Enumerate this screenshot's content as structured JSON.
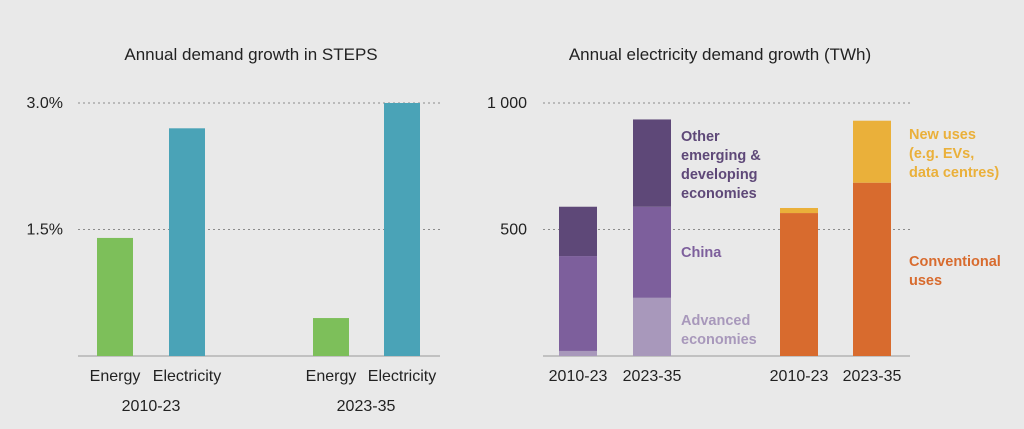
{
  "colors": {
    "background": "#e9e9e9",
    "energy": "#7dbf5a",
    "electricity": "#4aa3b7",
    "advanced_economies": "#a898bb",
    "china": "#7d5f9c",
    "other_emerging": "#5e4878",
    "conventional_uses": "#d86b2e",
    "new_uses": "#eab03a"
  },
  "chart_data": [
    {
      "type": "bar",
      "title": "Annual demand growth in STEPS",
      "ylim": [
        0,
        3.0
      ],
      "yticks": [
        {
          "value": 1.5,
          "label": "1.5%"
        },
        {
          "value": 3.0,
          "label": "3.0%"
        }
      ],
      "groups": [
        {
          "label": "2010-23",
          "bars": [
            {
              "label": "Energy",
              "value": 1.4,
              "color_key": "energy"
            },
            {
              "label": "Electricity",
              "value": 2.7,
              "color_key": "electricity"
            }
          ]
        },
        {
          "label": "2023-35",
          "bars": [
            {
              "label": "Energy",
              "value": 0.45,
              "color_key": "energy"
            },
            {
              "label": "Electricity",
              "value": 3.0,
              "color_key": "electricity"
            }
          ]
        }
      ]
    },
    {
      "type": "bar",
      "stacked": true,
      "title": "Annual electricity demand growth (TWh)",
      "ylim": [
        0,
        1000
      ],
      "yticks": [
        {
          "value": 500,
          "label": "500"
        },
        {
          "value": 1000,
          "label": "1 000"
        }
      ],
      "bars": [
        {
          "label": "2010-23",
          "segments": [
            {
              "name": "Advanced economies",
              "value": 20,
              "color_key": "advanced_economies"
            },
            {
              "name": "China",
              "value": 375,
              "color_key": "china"
            },
            {
              "name": "Other emerging & developing economies",
              "value": 195,
              "color_key": "other_emerging"
            }
          ]
        },
        {
          "label": "2023-35",
          "segments": [
            {
              "name": "Advanced economies",
              "value": 230,
              "color_key": "advanced_economies"
            },
            {
              "name": "China",
              "value": 360,
              "color_key": "china"
            },
            {
              "name": "Other emerging & developing economies",
              "value": 345,
              "color_key": "other_emerging"
            }
          ]
        },
        {
          "label": "2010-23",
          "segments": [
            {
              "name": "Conventional uses",
              "value": 565,
              "color_key": "conventional_uses"
            },
            {
              "name": "New uses (e.g. EVs, data centres)",
              "value": 20,
              "color_key": "new_uses"
            }
          ]
        },
        {
          "label": "2023-35",
          "segments": [
            {
              "name": "Conventional uses",
              "value": 685,
              "color_key": "conventional_uses"
            },
            {
              "name": "New uses (e.g. EVs, data centres)",
              "value": 245,
              "color_key": "new_uses"
            }
          ]
        }
      ],
      "annotations": [
        {
          "lines": [
            "Other",
            "emerging &",
            "developing",
            "economies"
          ],
          "color_key": "other_emerging"
        },
        {
          "lines": [
            "China"
          ],
          "color_key": "china"
        },
        {
          "lines": [
            "Advanced",
            "economies"
          ],
          "color_key": "advanced_economies"
        },
        {
          "lines": [
            "New uses",
            "(e.g. EVs,",
            "data centres)"
          ],
          "color_key": "new_uses"
        },
        {
          "lines": [
            "Conventional",
            "uses"
          ],
          "color_key": "conventional_uses"
        }
      ]
    }
  ]
}
